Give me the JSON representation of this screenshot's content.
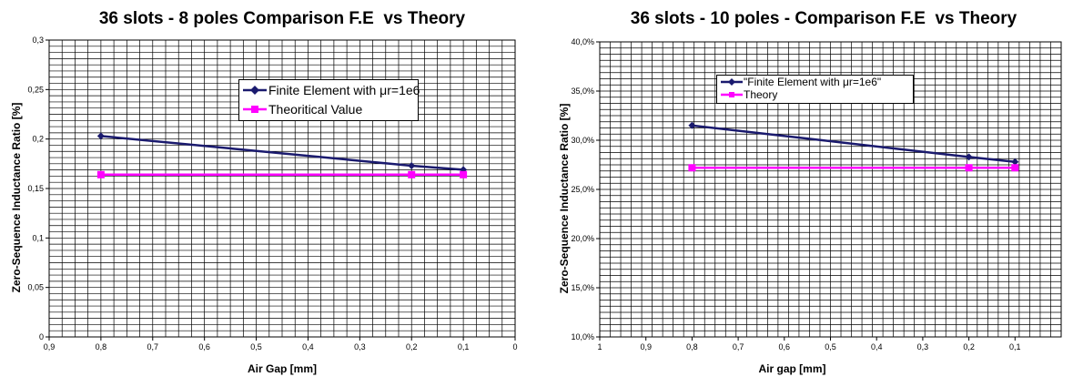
{
  "chart_data": [
    {
      "type": "line",
      "title": "36 slots - 8 poles Comparison F.E  vs Theory",
      "xlabel": "Air Gap [mm]",
      "ylabel": "Zero-Sequence Inductance Ratio [%]",
      "x_reversed": true,
      "xlim": [
        0,
        0.9
      ],
      "ylim": [
        0,
        0.3
      ],
      "x_ticks": [
        0.9,
        0.8,
        0.7,
        0.6,
        0.5,
        0.4,
        0.3,
        0.2,
        0.1,
        0
      ],
      "x_tick_labels": [
        "0,9",
        "0,8",
        "0,7",
        "0,6",
        "0,5",
        "0,4",
        "0,3",
        "0,2",
        "0,1",
        "0"
      ],
      "y_ticks": [
        0,
        0.05,
        0.1,
        0.15,
        0.2,
        0.25,
        0.3
      ],
      "y_tick_labels": [
        "0",
        "0,05",
        "0,1",
        "0,15",
        "0,2",
        "0,25",
        "0,3"
      ],
      "grid": true,
      "legend_position": "top-right",
      "series": [
        {
          "name": "Finite Element with μr=1e6",
          "color": "#1a1a6e",
          "marker": "diamond",
          "x": [
            0.8,
            0.2,
            0.1
          ],
          "y": [
            0.203,
            0.173,
            0.169
          ]
        },
        {
          "name": "Theoritical Value",
          "color": "#ff00ff",
          "marker": "square",
          "x": [
            0.8,
            0.2,
            0.1
          ],
          "y": [
            0.164,
            0.164,
            0.164
          ]
        }
      ]
    },
    {
      "type": "line",
      "title": "36 slots - 10 poles - Comparison F.E  vs Theory",
      "xlabel": "Air gap [mm]",
      "ylabel": "Zero-Sequence Inductance Ratio [%]",
      "x_reversed": true,
      "xlim": [
        0,
        1
      ],
      "ylim": [
        10,
        40
      ],
      "x_ticks": [
        1,
        0.9,
        0.8,
        0.7,
        0.6,
        0.5,
        0.4,
        0.3,
        0.2,
        0.1
      ],
      "x_tick_labels": [
        "1",
        "0,9",
        "0,8",
        "0,7",
        "0,6",
        "0,5",
        "0,4",
        "0,3",
        "0,2",
        "0,1"
      ],
      "y_ticks": [
        10,
        15,
        20,
        25,
        30,
        35,
        40
      ],
      "y_tick_labels": [
        "10,0%",
        "15,0%",
        "20,0%",
        "25,0%",
        "30,0%",
        "35,0%",
        "40,0%"
      ],
      "grid": true,
      "legend_position": "top-right",
      "series": [
        {
          "name": "\"Finite Element with μr=1e6\"",
          "color": "#1a1a6e",
          "marker": "diamond",
          "x": [
            0.8,
            0.2,
            0.1
          ],
          "y": [
            31.5,
            28.3,
            27.8
          ]
        },
        {
          "name": "Theory",
          "color": "#ff00ff",
          "marker": "square",
          "x": [
            0.8,
            0.2,
            0.1
          ],
          "y": [
            27.2,
            27.2,
            27.2
          ]
        }
      ]
    }
  ]
}
